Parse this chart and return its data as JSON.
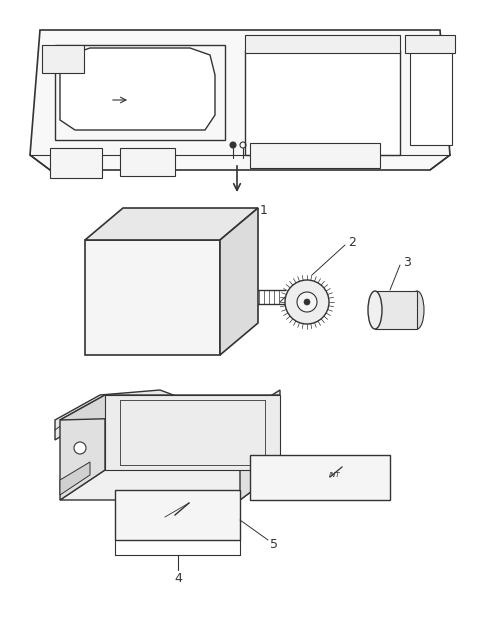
{
  "bg_color": "#ffffff",
  "line_color": "#333333",
  "fig_width": 4.8,
  "fig_height": 6.24,
  "dpi": 100
}
